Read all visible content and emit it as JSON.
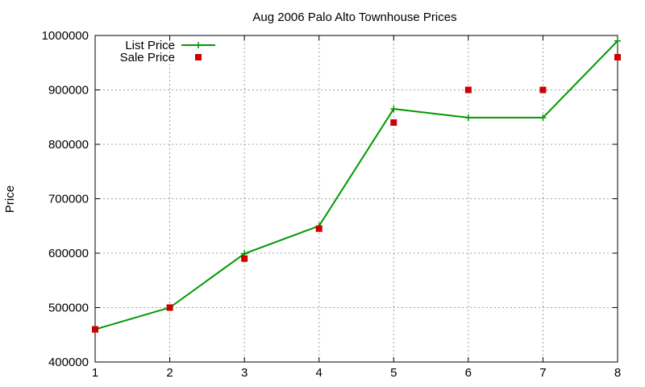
{
  "chart_data": {
    "type": "line",
    "title": "Aug 2006 Palo Alto Townhouse Prices",
    "xlabel": "",
    "ylabel": "Price",
    "x": [
      1,
      2,
      3,
      4,
      5,
      6,
      7,
      8
    ],
    "xlim": [
      1,
      8
    ],
    "ylim": [
      400000,
      1000000
    ],
    "xticks": [
      "1",
      "2",
      "3",
      "4",
      "5",
      "6",
      "7",
      "8"
    ],
    "yticks": [
      "400000",
      "500000",
      "600000",
      "700000",
      "800000",
      "900000",
      "1000000"
    ],
    "grid": true,
    "legend_position": "top-left",
    "series": [
      {
        "name": "List Price",
        "style": "line-with-plus-markers",
        "color": "#009900",
        "values": [
          460000,
          500000,
          599000,
          650000,
          865000,
          849000,
          849000,
          990000
        ]
      },
      {
        "name": "Sale Price",
        "style": "square-points",
        "color": "#cc0000",
        "values": [
          460000,
          500000,
          590000,
          645000,
          840000,
          900000,
          900000,
          960000
        ]
      }
    ]
  }
}
